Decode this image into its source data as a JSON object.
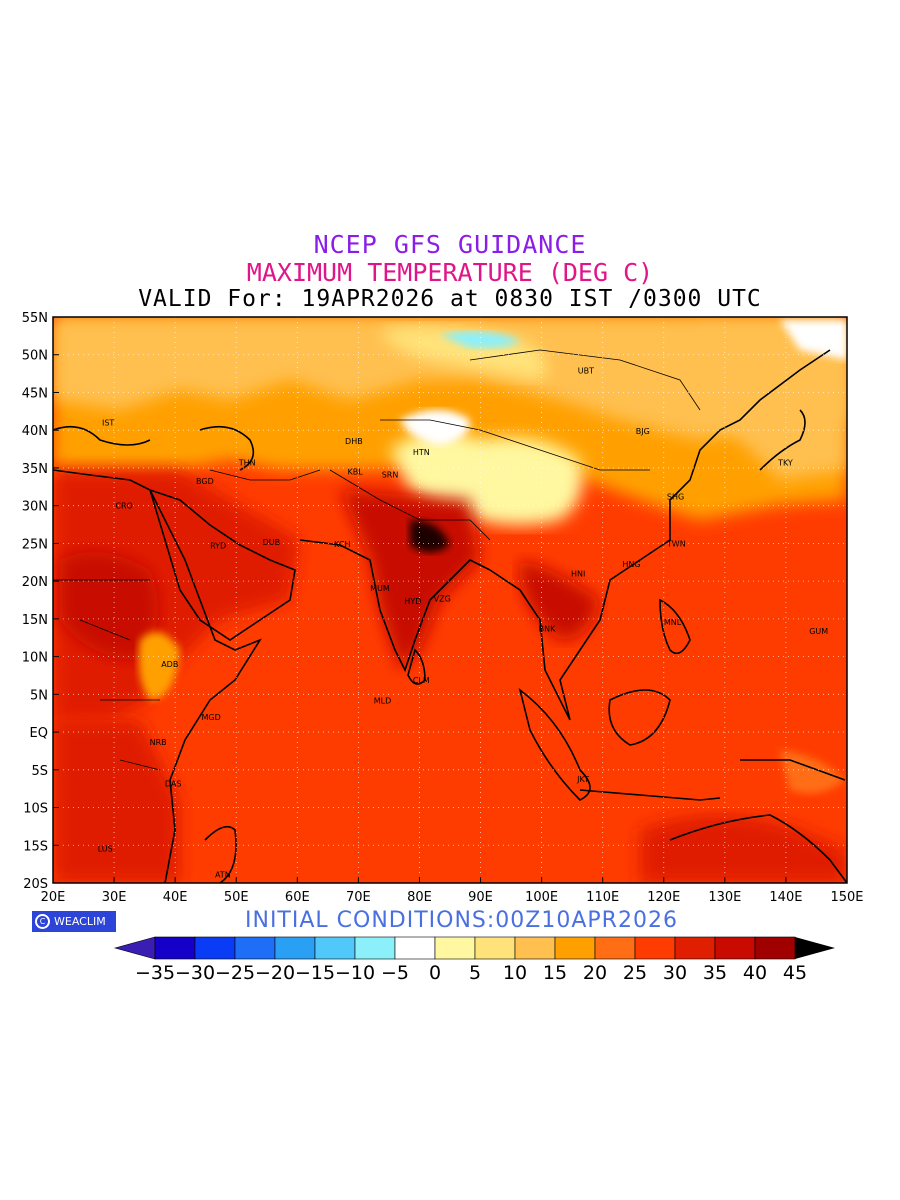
{
  "titles": {
    "line1": "NCEP GFS GUIDANCE",
    "line2": "MAXIMUM TEMPERATURE (DEG C)",
    "line3": "VALID For: 19APR2026 at 0830 IST /0300 UTC"
  },
  "initial_conditions": "INITIAL CONDITIONS:00Z10APR2026",
  "logo_text": "WEACLIM",
  "lon_labels": [
    "20E",
    "30E",
    "40E",
    "50E",
    "60E",
    "70E",
    "80E",
    "90E",
    "100E",
    "110E",
    "120E",
    "130E",
    "140E",
    "150E"
  ],
  "lat_labels": [
    "55N",
    "50N",
    "45N",
    "40N",
    "35N",
    "30N",
    "25N",
    "20N",
    "15N",
    "10N",
    "5N",
    "EQ",
    "5S",
    "10S",
    "15S",
    "20S"
  ],
  "colorbar": {
    "labels": [
      "-35",
      "-30",
      "-25",
      "-20",
      "-15",
      "-10",
      "-5",
      "0",
      "5",
      "10",
      "15",
      "20",
      "25",
      "30",
      "35",
      "40",
      "45"
    ],
    "colors": [
      "#1400c8",
      "#0a3cf5",
      "#1e6ef7",
      "#2aa0f5",
      "#50c8fa",
      "#8cf0fa",
      "#ffffff",
      "#fff8a0",
      "#ffe37a",
      "#ffc050",
      "#ffa000",
      "#ff6e14",
      "#ff3c00",
      "#e01e00",
      "#c80a00",
      "#a00000"
    ],
    "left_arrow": "#3a1eb4",
    "right_arrow": "#000000"
  },
  "cities": [
    {
      "code": "UBT",
      "lon": 106.9,
      "lat": 47.9
    },
    {
      "code": "BJG",
      "lon": 116.4,
      "lat": 39.9
    },
    {
      "code": "TKY",
      "lon": 139.7,
      "lat": 35.7
    },
    {
      "code": "SHG",
      "lon": 121.5,
      "lat": 31.2
    },
    {
      "code": "TWN",
      "lon": 121.5,
      "lat": 25.0
    },
    {
      "code": "HNG",
      "lon": 114.2,
      "lat": 22.3
    },
    {
      "code": "HNI",
      "lon": 105.8,
      "lat": 21.0
    },
    {
      "code": "MNL",
      "lon": 121.0,
      "lat": 14.6
    },
    {
      "code": "GUM",
      "lon": 144.8,
      "lat": 13.4
    },
    {
      "code": "BNK",
      "lon": 100.5,
      "lat": 13.7
    },
    {
      "code": "JKT",
      "lon": 106.8,
      "lat": -6.2
    },
    {
      "code": "DHB",
      "lon": 68.8,
      "lat": 38.6
    },
    {
      "code": "HTN",
      "lon": 79.9,
      "lat": 37.1
    },
    {
      "code": "KBL",
      "lon": 69.2,
      "lat": 34.5
    },
    {
      "code": "SRN",
      "lon": 74.8,
      "lat": 34.1
    },
    {
      "code": "KCH",
      "lon": 67.0,
      "lat": 24.9
    },
    {
      "code": "MUM",
      "lon": 72.9,
      "lat": 19.1
    },
    {
      "code": "HYD",
      "lon": 78.5,
      "lat": 17.4
    },
    {
      "code": "VZG",
      "lon": 83.3,
      "lat": 17.7
    },
    {
      "code": "CLM",
      "lon": 79.9,
      "lat": 6.9
    },
    {
      "code": "MLD",
      "lon": 73.5,
      "lat": 4.2
    },
    {
      "code": "THN",
      "lon": 51.4,
      "lat": 35.7
    },
    {
      "code": "BGD",
      "lon": 44.4,
      "lat": 33.3
    },
    {
      "code": "IST",
      "lon": 29.0,
      "lat": 41.0
    },
    {
      "code": "CRO",
      "lon": 31.2,
      "lat": 30.0
    },
    {
      "code": "RYD",
      "lon": 46.7,
      "lat": 24.7
    },
    {
      "code": "DUB",
      "lon": 55.3,
      "lat": 25.2
    },
    {
      "code": "ADB",
      "lon": 38.7,
      "lat": 9.0
    },
    {
      "code": "MGD",
      "lon": 45.3,
      "lat": 2.0
    },
    {
      "code": "NRB",
      "lon": 36.8,
      "lat": -1.3
    },
    {
      "code": "DAS",
      "lon": 39.3,
      "lat": -6.8
    },
    {
      "code": "LUS",
      "lon": 28.3,
      "lat": -15.4
    },
    {
      "code": "ATN",
      "lon": 47.5,
      "lat": -18.9
    }
  ]
}
